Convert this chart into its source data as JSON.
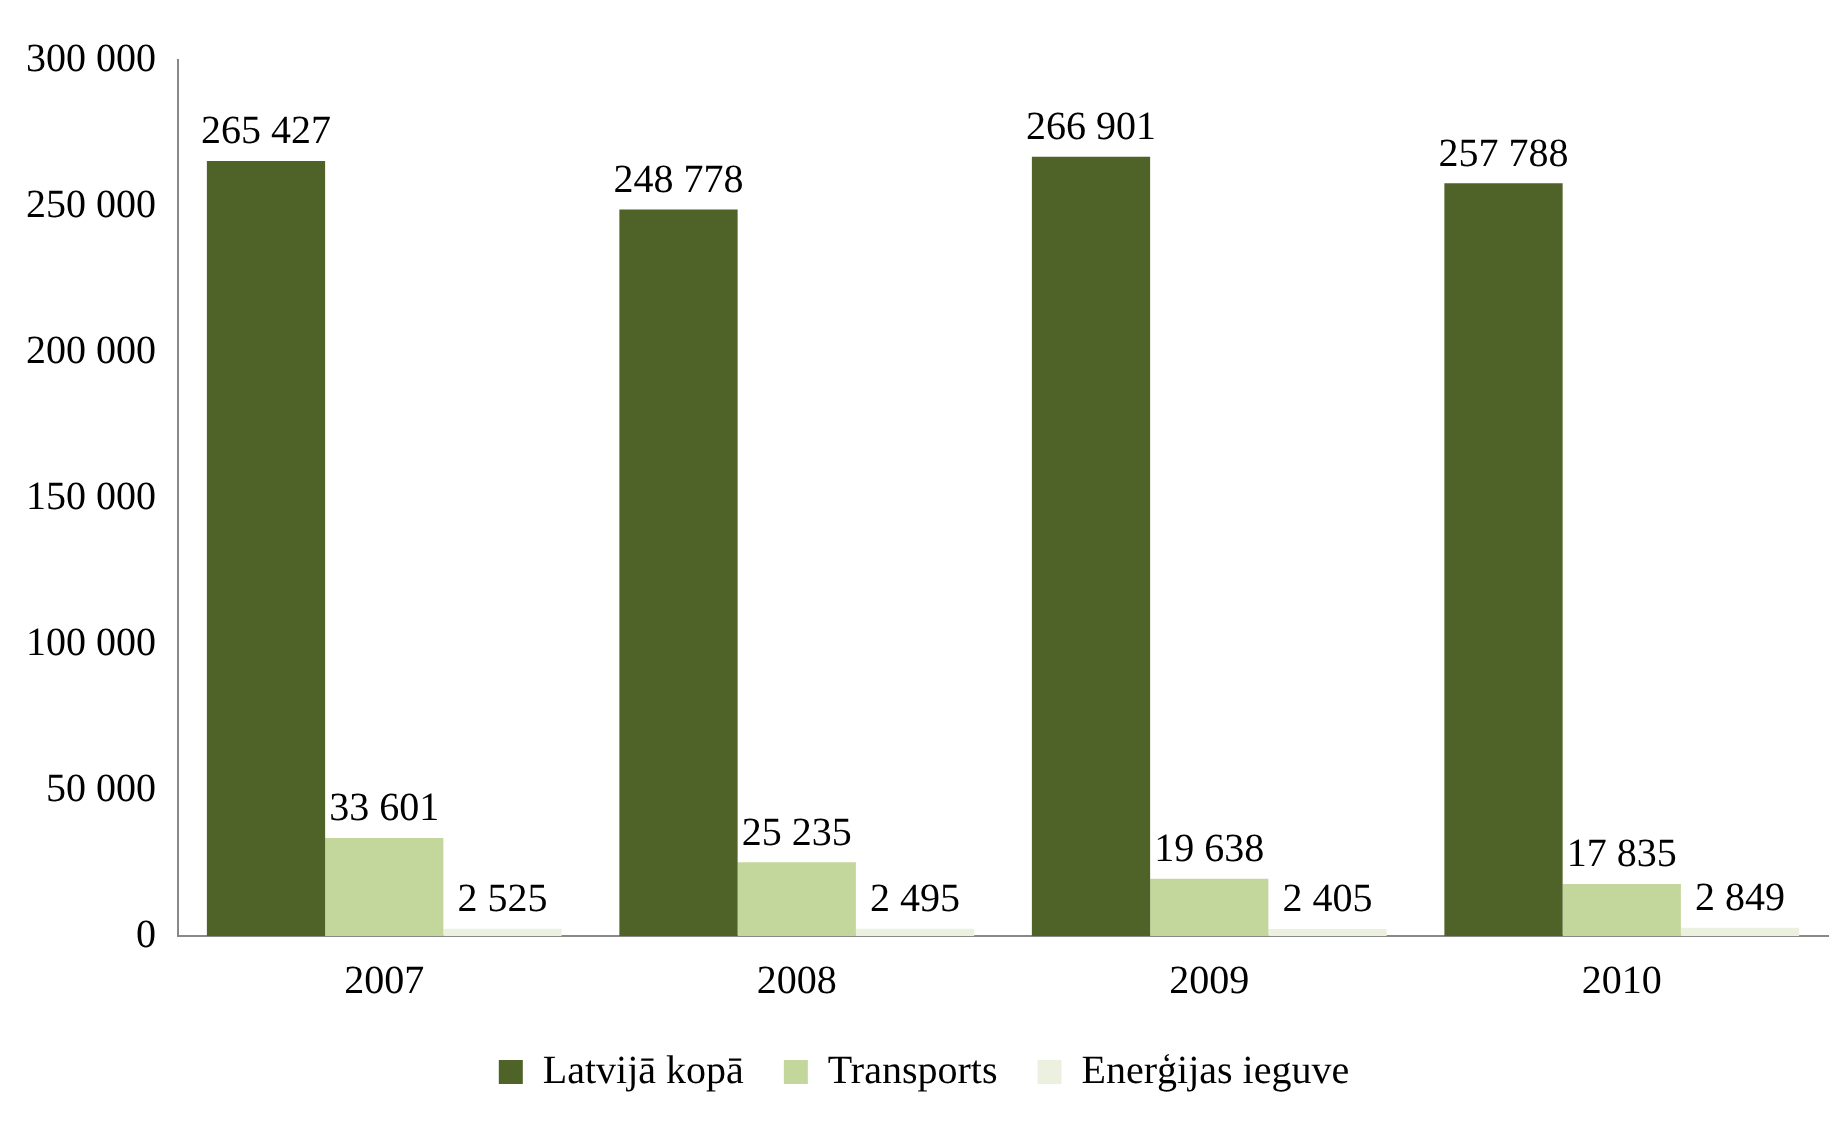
{
  "chart_data": {
    "type": "bar",
    "categories": [
      "2007",
      "2008",
      "2009",
      "2010"
    ],
    "series": [
      {
        "name": "Latvijā kopā",
        "color": "#4f6228",
        "values": [
          265427,
          248778,
          266901,
          257788
        ],
        "value_labels": [
          "265 427",
          "248 778",
          "266 901",
          "257 788"
        ]
      },
      {
        "name": "Transports",
        "color": "#c3d69b",
        "values": [
          33601,
          25235,
          19638,
          17835
        ],
        "value_labels": [
          "33 601",
          "25 235",
          "19 638",
          "17 835"
        ]
      },
      {
        "name": "Enerģijas ieguve",
        "color": "#ebf1de",
        "values": [
          2525,
          2495,
          2405,
          2849
        ],
        "value_labels": [
          "2 525",
          "2 495",
          "2 405",
          "2 849"
        ]
      }
    ],
    "ylim": [
      0,
      300000
    ],
    "yticks": [
      {
        "value": 0,
        "label": "0"
      },
      {
        "value": 50000,
        "label": "50 000"
      },
      {
        "value": 100000,
        "label": "100 000"
      },
      {
        "value": 150000,
        "label": "150 000"
      },
      {
        "value": 200000,
        "label": "200 000"
      },
      {
        "value": 250000,
        "label": "250 000"
      },
      {
        "value": 300000,
        "label": "300 000"
      }
    ],
    "grid": false,
    "legend": "bottom"
  }
}
